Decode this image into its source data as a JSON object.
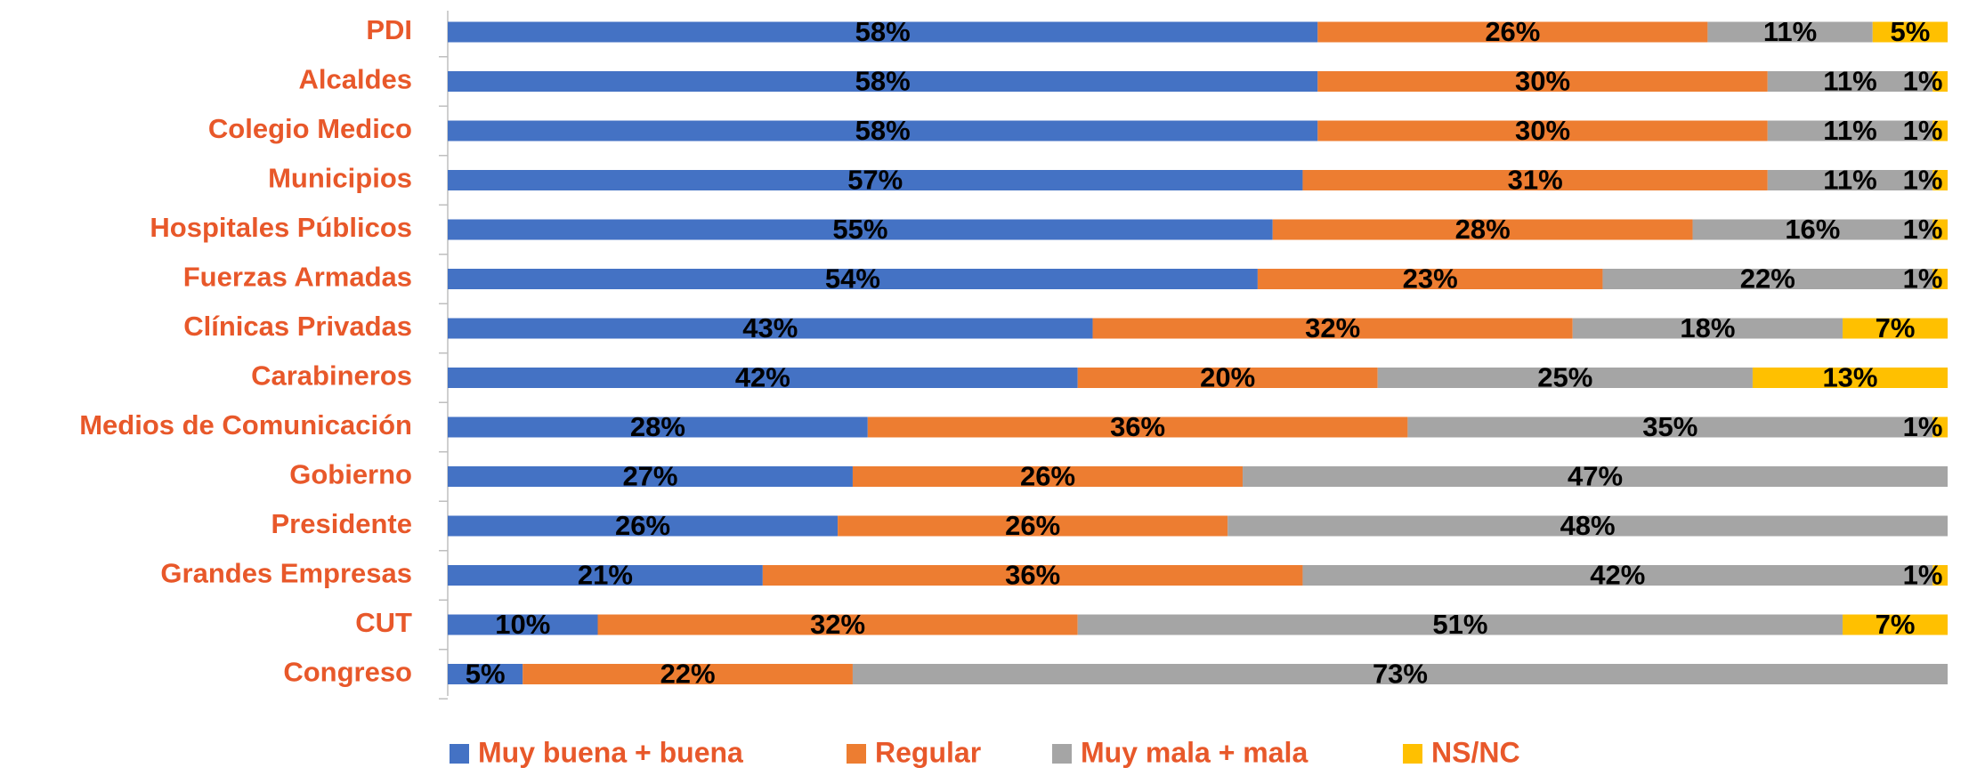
{
  "chart_data": {
    "type": "stacked-bar-horizontal",
    "categories": [
      "PDI",
      "Alcaldes",
      "Colegio Medico",
      "Municipios",
      "Hospitales Públicos",
      "Fuerzas Armadas",
      "Clínicas Privadas",
      "Carabineros",
      "Medios de Comunicación",
      "Gobierno",
      "Presidente",
      "Grandes Empresas",
      "CUT",
      "Congreso"
    ],
    "xlim": [
      0,
      100
    ],
    "series": [
      {
        "name": "Muy buena + buena",
        "color": "#4472c4",
        "values": [
          58,
          58,
          58,
          57,
          55,
          54,
          43,
          42,
          28,
          27,
          26,
          21,
          10,
          5
        ],
        "value_labels": [
          "58%",
          "58%",
          "58%",
          "57%",
          "55%",
          "54%",
          "43%",
          "42%",
          "28%",
          "27%",
          "26%",
          "21%",
          "10%",
          "5%"
        ]
      },
      {
        "name": "Regular",
        "color": "#ed7d31",
        "values": [
          26,
          30,
          30,
          31,
          28,
          23,
          32,
          20,
          36,
          26,
          26,
          36,
          32,
          22
        ],
        "value_labels": [
          "26%",
          "30%",
          "30%",
          "31%",
          "28%",
          "23%",
          "32%",
          "20%",
          "36%",
          "26%",
          "26%",
          "36%",
          "32%",
          "22%"
        ]
      },
      {
        "name": "Muy mala + mala",
        "color": "#a5a5a5",
        "values": [
          11,
          11,
          11,
          11,
          16,
          22,
          18,
          25,
          35,
          47,
          48,
          42,
          51,
          73
        ],
        "value_labels": [
          "11%",
          "11%",
          "11%",
          "11%",
          "16%",
          "22%",
          "18%",
          "25%",
          "35%",
          "47%",
          "48%",
          "42%",
          "51%",
          "73%"
        ]
      },
      {
        "name": "NS/NC",
        "color": "#ffc000",
        "values": [
          5,
          1,
          1,
          1,
          1,
          1,
          7,
          13,
          1,
          null,
          null,
          1,
          7,
          null
        ],
        "value_labels": [
          "5%",
          "1%",
          "1%",
          "1%",
          "1%",
          "1%",
          "7%",
          "13%",
          "1%",
          null,
          null,
          "1%",
          "7%",
          null
        ]
      }
    ]
  }
}
